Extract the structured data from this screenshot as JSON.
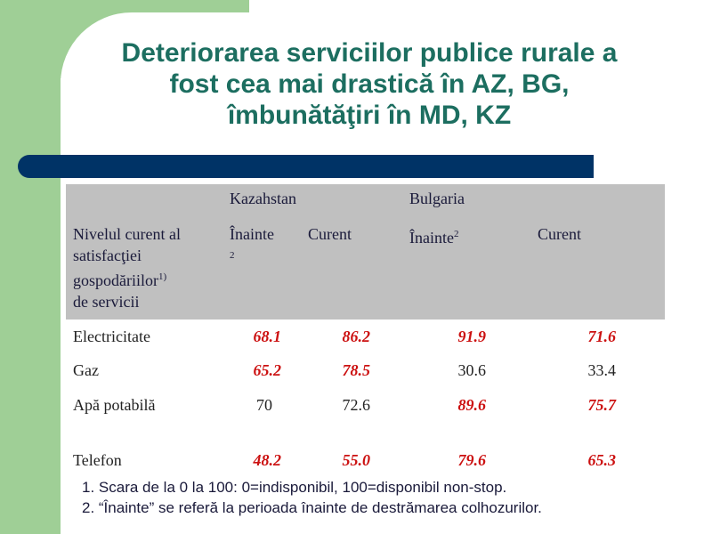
{
  "title_lines": [
    "Deteriorarea serviciilor publice rurale a",
    "fost cea mai drastică în AZ, BG,",
    "îmbunătăţiri în MD, KZ"
  ],
  "table": {
    "row_header_label": [
      "Nivelul curent al",
      "satisfacţiei",
      "gospodăriilor",
      "de servicii"
    ],
    "row_header_sup": "1)",
    "countries": [
      "Kazahstan",
      "Bulgaria"
    ],
    "col_before": "Înainte",
    "col_before_sup": "2",
    "col_current": "Curent",
    "rows": [
      {
        "label": "Electricitate",
        "values": [
          "68.1",
          "86.2",
          "91.9",
          "71.6"
        ]
      },
      {
        "label": "Gaz",
        "values": [
          "65.2",
          "78.5",
          "30.6",
          "33.4"
        ]
      },
      {
        "label": "Apă potabilă",
        "values": [
          "70",
          "72.6",
          "89.6",
          "75.7"
        ]
      },
      {
        "label": "Telefon",
        "values": [
          "48.2",
          "55.0",
          "79.6",
          "65.3"
        ]
      }
    ]
  },
  "highlight_color": "#cc1111",
  "notes": [
    "1. Scara de la 0 la 100: 0=indisponibil, 100=disponibil non-stop.",
    "2. “Înainte” se referă la perioada înainte de destrămarea colhozurilor."
  ]
}
